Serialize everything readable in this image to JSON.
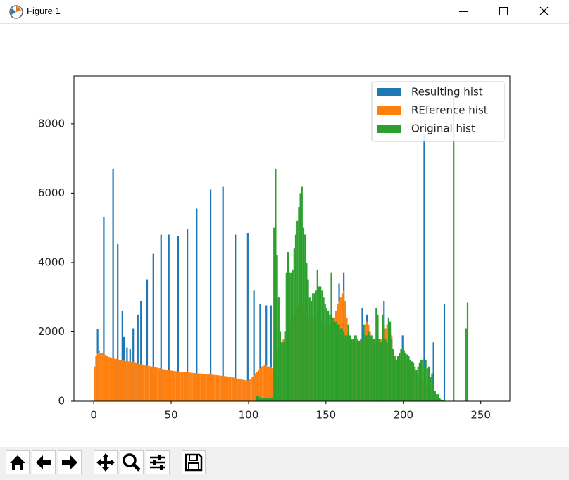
{
  "window": {
    "title": "Figure 1"
  },
  "chart_data": {
    "type": "histogram",
    "bins": [
      0,
      1,
      2,
      3,
      4,
      5,
      6,
      7,
      8,
      9,
      10,
      11,
      12,
      13,
      14,
      15,
      16,
      17,
      18,
      19,
      20,
      21,
      22,
      23,
      24,
      25,
      26,
      27,
      28,
      29,
      30,
      31,
      32,
      33,
      34,
      35,
      36,
      37,
      38,
      39,
      40,
      41,
      42,
      43,
      44,
      45,
      46,
      47,
      48,
      49,
      50,
      51,
      52,
      53,
      54,
      55,
      56,
      57,
      58,
      59,
      60,
      61,
      62,
      63,
      64,
      65,
      66,
      67,
      68,
      69,
      70,
      71,
      72,
      73,
      74,
      75,
      76,
      77,
      78,
      79,
      80,
      81,
      82,
      83,
      84,
      85,
      86,
      87,
      88,
      89,
      90,
      91,
      92,
      93,
      94,
      95,
      96,
      97,
      98,
      99,
      100,
      101,
      102,
      103,
      104,
      105,
      106,
      107,
      108,
      109,
      110,
      111,
      112,
      113,
      114,
      115,
      116,
      117,
      118,
      119,
      120,
      121,
      122,
      123,
      124,
      125,
      126,
      127,
      128,
      129,
      130,
      131,
      132,
      133,
      134,
      135,
      136,
      137,
      138,
      139,
      140,
      141,
      142,
      143,
      144,
      145,
      146,
      147,
      148,
      149,
      150,
      151,
      152,
      153,
      154,
      155,
      156,
      157,
      158,
      159,
      160,
      161,
      162,
      163,
      164,
      165,
      166,
      167,
      168,
      169,
      170,
      171,
      172,
      173,
      174,
      175,
      176,
      177,
      178,
      179,
      180,
      181,
      182,
      183,
      184,
      185,
      186,
      187,
      188,
      189,
      190,
      191,
      192,
      193,
      194,
      195,
      196,
      197,
      198,
      199,
      200,
      201,
      202,
      203,
      204,
      205,
      206,
      207,
      208,
      209,
      210,
      211,
      212,
      213,
      214,
      215,
      216,
      217,
      218,
      219,
      220,
      221,
      222,
      223,
      224,
      225,
      226,
      227,
      228,
      229,
      230,
      231,
      232,
      233,
      234,
      235,
      236,
      237,
      238,
      239,
      240,
      241,
      242,
      243,
      244,
      245,
      246,
      247,
      248,
      249,
      250,
      251,
      252,
      253,
      254,
      255,
      256
    ],
    "series": [
      {
        "name": "Resulting hist",
        "color": "#1f77b4",
        "values": [
          0,
          0,
          2070,
          0,
          0,
          0,
          5300,
          0,
          0,
          0,
          0,
          0,
          6700,
          0,
          0,
          4550,
          0,
          0,
          2600,
          1850,
          0,
          1550,
          0,
          1500,
          0,
          2100,
          0,
          0,
          2500,
          0,
          2900,
          0,
          0,
          0,
          3500,
          0,
          0,
          0,
          4250,
          0,
          0,
          0,
          0,
          4800,
          0,
          0,
          0,
          0,
          4800,
          0,
          0,
          0,
          0,
          0,
          4750,
          0,
          0,
          0,
          0,
          0,
          4950,
          0,
          0,
          0,
          0,
          0,
          5550,
          0,
          0,
          0,
          0,
          0,
          0,
          0,
          0,
          6100,
          0,
          0,
          0,
          0,
          0,
          0,
          0,
          6200,
          0,
          0,
          0,
          0,
          0,
          0,
          0,
          4800,
          0,
          0,
          0,
          0,
          0,
          0,
          0,
          4850,
          0,
          0,
          0,
          3200,
          0,
          0,
          0,
          2800,
          0,
          0,
          0,
          2750,
          0,
          0,
          2750,
          0,
          0,
          0,
          0,
          0,
          0,
          0,
          0,
          0,
          0,
          0,
          0,
          0,
          0,
          0,
          0,
          0,
          0,
          0,
          0,
          0,
          0,
          0,
          0,
          0,
          0,
          0,
          0,
          0,
          0,
          0,
          0,
          0,
          0,
          0,
          0,
          0,
          0,
          0,
          0,
          0,
          0,
          0,
          3400,
          0,
          0,
          3700,
          0,
          0,
          0,
          0,
          0,
          0,
          0,
          0,
          0,
          0,
          0,
          2700,
          0,
          0,
          2500,
          0,
          0,
          0,
          0,
          0,
          0,
          0,
          0,
          0,
          0,
          2900,
          0,
          0,
          0,
          0,
          0,
          0,
          0,
          0,
          0,
          0,
          0,
          1900,
          0,
          0,
          0,
          0,
          0,
          0,
          0,
          0,
          0,
          0,
          0,
          0,
          0,
          7700,
          0,
          0,
          0,
          0,
          0,
          1700,
          0,
          0,
          0,
          0,
          0,
          0,
          2800,
          0,
          0,
          0,
          0,
          0,
          0,
          0,
          0,
          0,
          0,
          0,
          0,
          0,
          0,
          0,
          0,
          0,
          0,
          0,
          0,
          0,
          0,
          0,
          0,
          0,
          0,
          0,
          0,
          0
        ]
      },
      {
        "name": "REference hist",
        "color": "#ff7f0e",
        "values": [
          1000,
          1300,
          1400,
          1450,
          1400,
          1380,
          1350,
          1330,
          1300,
          1280,
          1270,
          1250,
          1240,
          1230,
          1220,
          1210,
          1200,
          1190,
          1180,
          1170,
          1160,
          1150,
          1150,
          1140,
          1130,
          1120,
          1110,
          1100,
          1090,
          1080,
          1070,
          1060,
          1050,
          1040,
          1030,
          1020,
          1010,
          1000,
          990,
          980,
          970,
          960,
          950,
          940,
          930,
          920,
          910,
          900,
          900,
          890,
          880,
          875,
          870,
          865,
          860,
          855,
          850,
          850,
          845,
          840,
          835,
          830,
          825,
          820,
          815,
          810,
          805,
          800,
          800,
          795,
          790,
          785,
          780,
          775,
          770,
          770,
          765,
          760,
          755,
          750,
          745,
          740,
          735,
          730,
          725,
          720,
          715,
          710,
          700,
          690,
          680,
          670,
          660,
          650,
          640,
          630,
          620,
          610,
          600,
          600,
          620,
          650,
          700,
          750,
          800,
          850,
          900,
          950,
          1000,
          1020,
          1050,
          1050,
          1000,
          1000,
          980,
          950,
          1200,
          1300,
          1400,
          1500,
          1600,
          1700,
          1800,
          1900,
          2000,
          2100,
          2200,
          2300,
          2400,
          2500,
          2600,
          2700,
          2800,
          2800,
          2800,
          2800,
          2700,
          2600,
          2500,
          2400,
          2400,
          2400,
          2400,
          2400,
          2400,
          2400,
          2300,
          2300,
          2200,
          2200,
          2200,
          2200,
          2200,
          2300,
          2300,
          2400,
          2600,
          2800,
          2900,
          3000,
          3100,
          3200,
          2900,
          2400,
          2000,
          1800,
          1700,
          1700,
          1700,
          1700,
          1700,
          1700,
          1700,
          1800,
          2000,
          2200,
          2300,
          2200,
          2000,
          1800,
          1700,
          1700,
          1700,
          1700,
          1700,
          1800,
          1900,
          2000,
          2100,
          2200,
          2200,
          2100,
          1900,
          1500,
          1300,
          1200,
          1200,
          1200,
          1200,
          1200,
          1200,
          1150,
          1100,
          1050,
          1000,
          950,
          900,
          850,
          800,
          750,
          700,
          650,
          600,
          550,
          500,
          450,
          400,
          350,
          300,
          250,
          200,
          150,
          100,
          50,
          0,
          0,
          0,
          0,
          0,
          0,
          0,
          0,
          0,
          0,
          0,
          0,
          0,
          0,
          0,
          0,
          0,
          0,
          0,
          0,
          0,
          0,
          0,
          0,
          0,
          0,
          0,
          0,
          0,
          0,
          0,
          0
        ]
      },
      {
        "name": "Original hist",
        "color": "#2ca02c",
        "values": [
          0,
          0,
          0,
          0,
          0,
          0,
          0,
          0,
          0,
          0,
          0,
          0,
          0,
          0,
          0,
          0,
          0,
          0,
          0,
          0,
          0,
          0,
          0,
          0,
          0,
          0,
          0,
          0,
          0,
          0,
          0,
          0,
          0,
          0,
          0,
          0,
          0,
          0,
          0,
          0,
          0,
          0,
          0,
          0,
          0,
          0,
          0,
          0,
          0,
          0,
          0,
          0,
          0,
          0,
          0,
          0,
          0,
          0,
          0,
          0,
          0,
          0,
          0,
          0,
          0,
          0,
          0,
          0,
          0,
          0,
          0,
          0,
          0,
          0,
          0,
          0,
          0,
          0,
          0,
          0,
          0,
          0,
          0,
          0,
          0,
          0,
          0,
          0,
          0,
          0,
          0,
          0,
          0,
          0,
          0,
          0,
          0,
          0,
          0,
          0,
          0,
          0,
          0,
          0,
          0,
          150,
          150,
          100,
          100,
          100,
          100,
          100,
          100,
          100,
          100,
          100,
          5000,
          6700,
          4200,
          3000,
          2000,
          1700,
          1700,
          2000,
          3700,
          4300,
          3700,
          3700,
          3800,
          4400,
          4800,
          5200,
          5600,
          6000,
          6200,
          5000,
          4800,
          4000,
          3500,
          3000,
          2900,
          3100,
          3100,
          3200,
          3800,
          3300,
          3300,
          3200,
          3000,
          2800,
          2700,
          2600,
          2500,
          3700,
          2400,
          2300,
          2300,
          2200,
          2200,
          2100,
          2100,
          2000,
          1900,
          1900,
          2200,
          1900,
          1800,
          1800,
          1900,
          1900,
          1800,
          1750,
          1800,
          1800,
          2200,
          1900,
          1900,
          2000,
          1900,
          1900,
          1800,
          1800,
          2700,
          2500,
          1800,
          1700,
          2500,
          2200,
          1800,
          1700,
          2400,
          2300,
          1800,
          1500,
          1300,
          1200,
          1300,
          1400,
          1500,
          1500,
          1450,
          1400,
          1350,
          1300,
          1200,
          1150,
          1100,
          1000,
          900,
          1000,
          1100,
          1200,
          1200,
          1000,
          1200,
          950,
          1000,
          700,
          800,
          500,
          300,
          200,
          200,
          100,
          50,
          30,
          20,
          10,
          10,
          0,
          0,
          0,
          8930,
          0,
          0,
          0,
          0,
          0,
          0,
          0,
          2100,
          2850,
          0,
          0,
          0,
          0,
          0,
          0,
          0,
          0,
          0,
          0,
          0,
          0,
          0,
          0
        ]
      }
    ],
    "xlim": [
      -12.8,
      268.8
    ],
    "ylim": [
      0,
      9377
    ],
    "xticks": [
      0,
      50,
      100,
      150,
      200,
      250
    ],
    "yticks": [
      0,
      2000,
      4000,
      6000,
      8000
    ],
    "legend": "upper right",
    "grid": false
  }
}
